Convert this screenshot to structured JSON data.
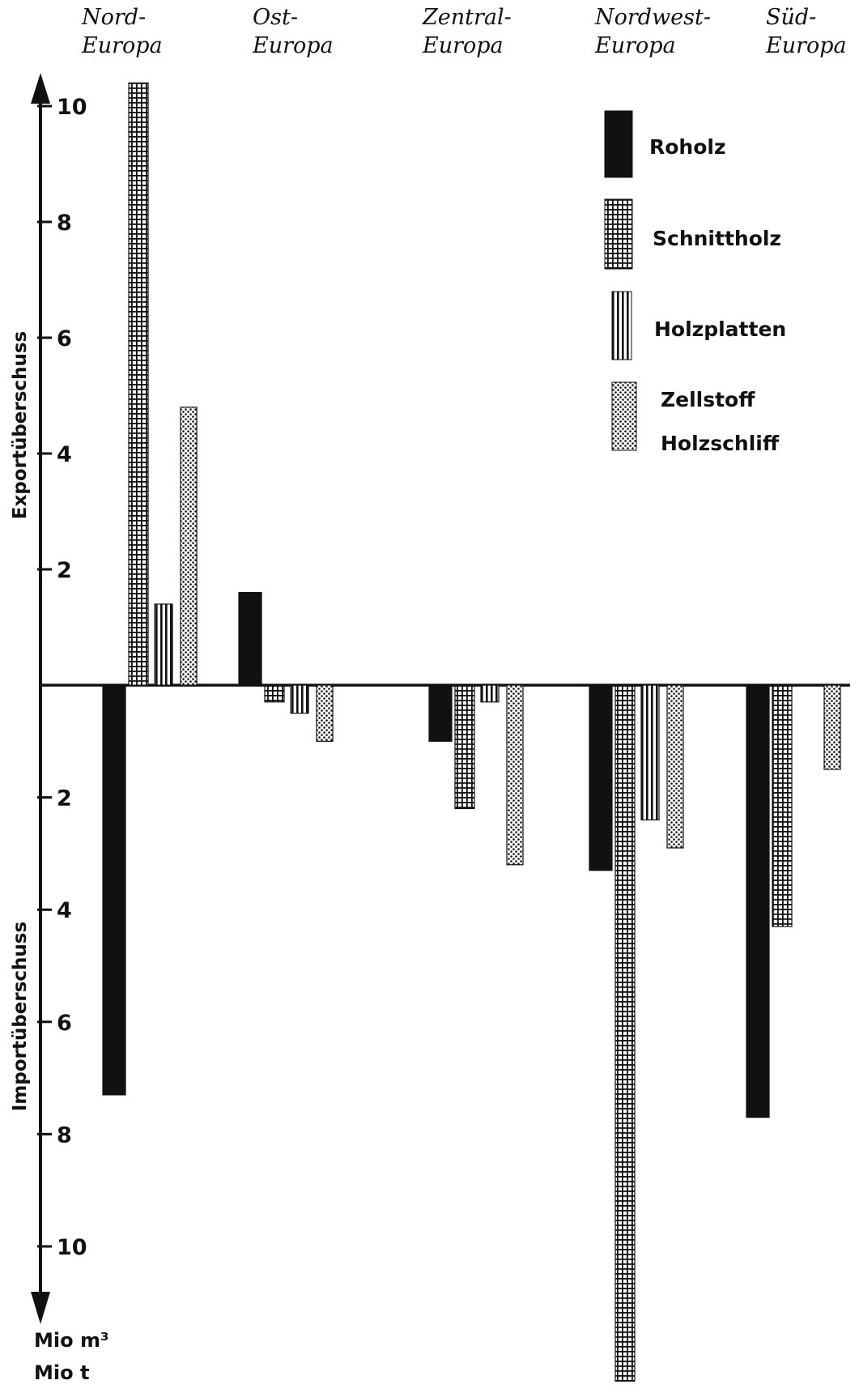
{
  "chart_data": {
    "type": "bar",
    "categories": [
      [
        "Nord-",
        "Europa"
      ],
      [
        "Ost-",
        "Europa"
      ],
      [
        "Zentral-",
        "Europa"
      ],
      [
        "Nordwest-",
        "Europa"
      ],
      [
        "Süd-",
        "Europa"
      ]
    ],
    "series": [
      {
        "name": "Roholz",
        "pattern": "solid",
        "values": [
          -7.3,
          1.6,
          -1.0,
          -3.3,
          -7.7
        ]
      },
      {
        "name": "Schnittholz",
        "pattern": "grid",
        "values": [
          10.4,
          -0.3,
          -2.2,
          -12.4,
          -4.3
        ]
      },
      {
        "name": "Holzplatten",
        "pattern": "vlines",
        "values": [
          1.4,
          -0.5,
          -0.3,
          -2.4,
          null
        ]
      },
      {
        "name": [
          "Zellstoff",
          "Holzschliff"
        ],
        "pattern": "dots",
        "values": [
          4.8,
          -1.0,
          -3.2,
          -2.9,
          -1.5
        ]
      }
    ],
    "y_ticks_export": [
      "10",
      "8",
      "6",
      "4",
      "2"
    ],
    "y_ticks_import": [
      "2",
      "4",
      "6",
      "8",
      "10"
    ],
    "ylabel_export": "Exportüberschuss",
    "ylabel_import": "Importüberschuss",
    "unit_lines": [
      "Mio m³",
      "Mio t"
    ],
    "ylim": [
      -12.6,
      10.6
    ],
    "legend_position": "top-right",
    "grid": false,
    "colors": {
      "ink": "#111111",
      "background": "#ffffff"
    }
  }
}
